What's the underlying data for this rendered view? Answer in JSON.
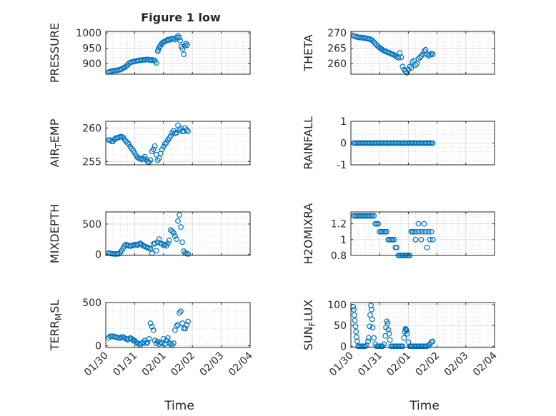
{
  "figure": {
    "title": "Figure 1 low",
    "xlabel": "Time"
  },
  "chart_data": [
    {
      "type": "scatter",
      "ylabel": "PRESSURE",
      "yticks": [
        900,
        950,
        1000
      ],
      "ylim": [
        865,
        1005
      ],
      "xticks": [
        "01/30",
        "01/31",
        "02/01",
        "02/02",
        "02/03",
        "02/04"
      ],
      "show_xtick_labels": false,
      "x": [
        0.1,
        0.15,
        0.2,
        0.25,
        0.3,
        0.35,
        0.4,
        0.45,
        0.5,
        0.55,
        0.6,
        0.65,
        0.7,
        0.75,
        0.8,
        0.85,
        0.9,
        0.95,
        1.0,
        1.05,
        1.1,
        1.15,
        1.2,
        1.25,
        1.3,
        1.35,
        1.4,
        1.45,
        1.5,
        1.55,
        1.6,
        1.65,
        1.7,
        1.75,
        1.8,
        1.82,
        1.85,
        1.88,
        1.92,
        1.95,
        2.0,
        2.05,
        2.1,
        2.15,
        2.2,
        2.25,
        2.3,
        2.35,
        2.4,
        2.45,
        2.5,
        2.55,
        2.58,
        2.62,
        2.66,
        2.7,
        2.74,
        2.78,
        2.82
      ],
      "y": [
        872,
        873,
        875,
        876,
        877,
        877,
        878,
        879,
        880,
        882,
        885,
        887,
        890,
        895,
        900,
        903,
        905,
        906,
        907,
        908,
        909,
        910,
        911,
        911,
        912,
        912,
        913,
        913,
        912,
        911,
        912,
        911,
        909,
        902,
        940,
        945,
        952,
        957,
        962,
        967,
        970,
        972,
        975,
        978,
        977,
        980,
        982,
        980,
        978,
        985,
        990,
        985,
        975,
        955,
        948,
        930,
        958,
        965,
        960
      ]
    },
    {
      "type": "scatter",
      "ylabel": "THETA",
      "yticks": [
        260,
        265,
        270
      ],
      "ylim": [
        256.5,
        270.5
      ],
      "xticks": [
        "01/30",
        "01/31",
        "02/01",
        "02/02",
        "02/03",
        "02/04"
      ],
      "show_xtick_labels": false,
      "x": [
        0.1,
        0.15,
        0.2,
        0.25,
        0.3,
        0.35,
        0.4,
        0.45,
        0.5,
        0.55,
        0.6,
        0.65,
        0.7,
        0.75,
        0.8,
        0.85,
        0.9,
        0.95,
        1.0,
        1.05,
        1.1,
        1.15,
        1.2,
        1.25,
        1.3,
        1.35,
        1.4,
        1.45,
        1.5,
        1.55,
        1.6,
        1.65,
        1.7,
        1.75,
        1.8,
        1.85,
        1.9,
        1.95,
        2.0,
        2.05,
        2.1,
        2.15,
        2.2,
        2.25,
        2.3,
        2.35,
        2.4,
        2.45,
        2.5,
        2.55,
        2.6,
        2.65,
        2.7,
        2.75,
        2.8,
        2.85
      ],
      "y": [
        269,
        268.9,
        268.7,
        268.6,
        268.5,
        268.5,
        268.4,
        268.4,
        268.3,
        268.2,
        268.1,
        268,
        267.8,
        267.5,
        267,
        266.5,
        266,
        265.6,
        265.2,
        264.9,
        264.5,
        264.2,
        264,
        263.8,
        263.6,
        263.4,
        263.2,
        263,
        262.8,
        262.5,
        262.2,
        261.9,
        263.5,
        262,
        259,
        258,
        257.5,
        257,
        258,
        259,
        258.5,
        260.5,
        261,
        259.5,
        260,
        261.5,
        262,
        262.5,
        263,
        264,
        264.5,
        263,
        262.5,
        262.8,
        263.2,
        263
      ]
    },
    {
      "type": "scatter",
      "ylabel": "AIR_TEMP",
      "yticks": [
        255,
        260
      ],
      "ylim": [
        254.5,
        261
      ],
      "xticks": [
        "01/30",
        "01/31",
        "02/01",
        "02/02",
        "02/03",
        "02/04"
      ],
      "show_xtick_labels": false,
      "x": [
        0.1,
        0.15,
        0.2,
        0.25,
        0.3,
        0.35,
        0.4,
        0.45,
        0.5,
        0.55,
        0.6,
        0.65,
        0.7,
        0.75,
        0.8,
        0.85,
        0.9,
        0.95,
        1.0,
        1.05,
        1.1,
        1.15,
        1.2,
        1.25,
        1.3,
        1.35,
        1.4,
        1.45,
        1.5,
        1.55,
        1.6,
        1.65,
        1.7,
        1.75,
        1.8,
        1.85,
        1.9,
        1.95,
        2.0,
        2.05,
        2.1,
        2.15,
        2.2,
        2.25,
        2.3,
        2.35,
        2.4,
        2.45,
        2.5,
        2.55,
        2.6,
        2.65,
        2.7,
        2.75,
        2.8,
        2.85
      ],
      "y": [
        258.2,
        258.2,
        258,
        258,
        258.3,
        258.5,
        258.5,
        258.6,
        258.7,
        258.7,
        258.6,
        258.3,
        258,
        257.8,
        257.6,
        257.2,
        256.9,
        256.6,
        256.3,
        255.9,
        255.6,
        255.5,
        255.4,
        255.3,
        255.4,
        255.7,
        255.3,
        255,
        254.9,
        255.2,
        256.5,
        256.8,
        257.3,
        256,
        255.2,
        255.5,
        256.2,
        256.8,
        257.2,
        257.6,
        257.8,
        258.2,
        258.5,
        258.8,
        259.3,
        259.6,
        259.2,
        259.3,
        260.4,
        259.7,
        259.9,
        259.5,
        259.5,
        260,
        259.7,
        259.5
      ]
    },
    {
      "type": "scatter",
      "ylabel": "RAINFALL",
      "yticks": [
        -1,
        0,
        1
      ],
      "ylim": [
        -1,
        1
      ],
      "xticks": [
        "01/30",
        "01/31",
        "02/01",
        "02/02",
        "02/03",
        "02/04"
      ],
      "show_xtick_labels": false,
      "x": [
        0.1,
        0.15,
        0.2,
        0.25,
        0.3,
        0.35,
        0.4,
        0.45,
        0.5,
        0.55,
        0.6,
        0.65,
        0.7,
        0.75,
        0.8,
        0.85,
        0.9,
        0.95,
        1.0,
        1.05,
        1.1,
        1.15,
        1.2,
        1.25,
        1.3,
        1.35,
        1.4,
        1.45,
        1.5,
        1.55,
        1.6,
        1.65,
        1.7,
        1.75,
        1.8,
        1.85,
        1.9,
        1.95,
        2.0,
        2.05,
        2.1,
        2.15,
        2.2,
        2.25,
        2.3,
        2.35,
        2.4,
        2.45,
        2.5,
        2.55,
        2.6,
        2.65,
        2.7,
        2.75,
        2.8,
        2.85
      ],
      "y": [
        0,
        0,
        0,
        0,
        0,
        0,
        0,
        0,
        0,
        0,
        0,
        0,
        0,
        0,
        0,
        0,
        0,
        0,
        0,
        0,
        0,
        0,
        0,
        0,
        0,
        0,
        0,
        0,
        0,
        0,
        0,
        0,
        0,
        0,
        0,
        0,
        0,
        0,
        0,
        0,
        0,
        0,
        0,
        0,
        0,
        0,
        0,
        0,
        0,
        0,
        0,
        0,
        0,
        0,
        0,
        0
      ]
    },
    {
      "type": "scatter",
      "ylabel": "MIXDEPTH",
      "yticks": [
        0,
        500
      ],
      "ylim": [
        -20,
        700
      ],
      "xticks": [
        "01/30",
        "01/31",
        "02/01",
        "02/02",
        "02/03",
        "02/04"
      ],
      "show_xtick_labels": false,
      "x": [
        0.1,
        0.15,
        0.2,
        0.25,
        0.3,
        0.35,
        0.4,
        0.45,
        0.5,
        0.55,
        0.6,
        0.65,
        0.7,
        0.75,
        0.8,
        0.85,
        0.9,
        0.95,
        1.0,
        1.05,
        1.1,
        1.15,
        1.2,
        1.25,
        1.3,
        1.35,
        1.4,
        1.45,
        1.5,
        1.55,
        1.6,
        1.65,
        1.7,
        1.75,
        1.8,
        1.85,
        1.9,
        1.95,
        2.0,
        2.05,
        2.1,
        2.15,
        2.2,
        2.25,
        2.3,
        2.35,
        2.4,
        2.45,
        2.5,
        2.55,
        2.6,
        2.65,
        2.7,
        2.75,
        2.8,
        2.85
      ],
      "y": [
        20,
        15,
        10,
        8,
        5,
        5,
        5,
        10,
        30,
        60,
        100,
        140,
        160,
        150,
        140,
        135,
        140,
        150,
        160,
        155,
        150,
        170,
        180,
        160,
        140,
        130,
        120,
        110,
        100,
        90,
        15,
        170,
        180,
        60,
        200,
        250,
        180,
        170,
        150,
        160,
        140,
        180,
        230,
        400,
        380,
        350,
        300,
        250,
        550,
        650,
        450,
        200,
        50,
        20,
        10,
        5
      ]
    },
    {
      "type": "scatter",
      "ylabel": "H2OMIXRA",
      "yticks": [
        0.8,
        1,
        1.2
      ],
      "ylim": [
        0.8,
        1.35
      ],
      "xticks": [
        "01/30",
        "01/31",
        "02/01",
        "02/02",
        "02/03",
        "02/04"
      ],
      "show_xtick_labels": false,
      "x": [
        0.1,
        0.15,
        0.2,
        0.25,
        0.3,
        0.35,
        0.4,
        0.45,
        0.5,
        0.55,
        0.6,
        0.65,
        0.7,
        0.75,
        0.8,
        0.85,
        0.9,
        0.95,
        1.0,
        1.05,
        1.1,
        1.15,
        1.2,
        1.25,
        1.3,
        1.35,
        1.4,
        1.45,
        1.5,
        1.55,
        1.6,
        1.65,
        1.7,
        1.75,
        1.8,
        1.85,
        1.9,
        1.95,
        2.0,
        2.05,
        2.1,
        2.15,
        2.2,
        2.25,
        2.3,
        2.35,
        2.4,
        2.45,
        2.5,
        2.55,
        2.6,
        2.65,
        2.7,
        2.75,
        2.8,
        2.85
      ],
      "y": [
        1.3,
        1.3,
        1.3,
        1.3,
        1.3,
        1.3,
        1.3,
        1.3,
        1.3,
        1.3,
        1.3,
        1.3,
        1.3,
        1.3,
        1.3,
        1.2,
        1.2,
        1.2,
        1.1,
        1.1,
        1.1,
        1.1,
        1.1,
        1.1,
        1.0,
        1.0,
        1.0,
        1.0,
        1.0,
        0.9,
        0.9,
        0.8,
        0.8,
        0.8,
        0.8,
        0.8,
        0.8,
        0.8,
        0.8,
        0.8,
        1.1,
        1.1,
        1.1,
        1.0,
        1.1,
        1.2,
        1.1,
        1.0,
        1.1,
        1.2,
        1.1,
        0.9,
        1.1,
        1.0,
        1.1,
        1.0
      ]
    },
    {
      "type": "scatter",
      "ylabel": "TERR_MSL",
      "yticks": [
        0,
        500
      ],
      "ylim": [
        -20,
        500
      ],
      "xticks": [
        "01/30",
        "01/31",
        "02/01",
        "02/02",
        "02/03",
        "02/04"
      ],
      "show_xtick_labels": true,
      "x": [
        0.1,
        0.15,
        0.2,
        0.25,
        0.3,
        0.35,
        0.4,
        0.45,
        0.5,
        0.55,
        0.6,
        0.65,
        0.7,
        0.75,
        0.8,
        0.85,
        0.9,
        0.95,
        1.0,
        1.05,
        1.1,
        1.15,
        1.2,
        1.25,
        1.3,
        1.35,
        1.4,
        1.45,
        1.5,
        1.55,
        1.6,
        1.65,
        1.7,
        1.75,
        1.8,
        1.85,
        1.9,
        1.95,
        2.0,
        2.05,
        2.1,
        2.15,
        2.2,
        2.25,
        2.3,
        2.35,
        2.4,
        2.45,
        2.5,
        2.55,
        2.6,
        2.65,
        2.7,
        2.75,
        2.8,
        2.85
      ],
      "y": [
        90,
        110,
        110,
        110,
        105,
        100,
        95,
        90,
        90,
        100,
        100,
        90,
        80,
        70,
        80,
        90,
        80,
        60,
        60,
        40,
        30,
        20,
        10,
        30,
        40,
        60,
        30,
        40,
        80,
        260,
        220,
        180,
        60,
        30,
        50,
        20,
        40,
        30,
        80,
        20,
        60,
        90,
        30,
        20,
        10,
        30,
        180,
        230,
        240,
        380,
        400,
        260,
        200,
        200,
        240,
        280
      ]
    },
    {
      "type": "scatter",
      "ylabel": "SUN_FLUX",
      "yticks": [
        0,
        50,
        100
      ],
      "ylim": [
        -3,
        105
      ],
      "xticks": [
        "01/30",
        "01/31",
        "02/01",
        "02/02",
        "02/03",
        "02/04"
      ],
      "show_xtick_labels": true,
      "x": [
        0.08,
        0.1,
        0.12,
        0.14,
        0.16,
        0.18,
        0.2,
        0.22,
        0.25,
        0.3,
        0.35,
        0.4,
        0.45,
        0.5,
        0.55,
        0.6,
        0.62,
        0.65,
        0.67,
        0.7,
        0.72,
        0.74,
        0.76,
        0.8,
        0.85,
        0.9,
        0.95,
        1.0,
        1.05,
        1.1,
        1.15,
        1.2,
        1.22,
        1.25,
        1.28,
        1.3,
        1.33,
        1.36,
        1.4,
        1.45,
        1.5,
        1.55,
        1.6,
        1.65,
        1.7,
        1.75,
        1.8,
        1.85,
        1.88,
        1.9,
        1.92,
        1.94,
        1.96,
        2.0,
        2.05,
        2.1,
        2.15,
        2.2,
        2.25,
        2.3,
        2.35,
        2.4,
        2.45,
        2.5,
        2.55,
        2.6,
        2.65,
        2.7,
        2.75,
        2.8,
        2.85
      ],
      "y": [
        95,
        88,
        75,
        62,
        48,
        35,
        22,
        12,
        0,
        0,
        0,
        0,
        0,
        0,
        2,
        12,
        20,
        48,
        75,
        98,
        88,
        65,
        45,
        20,
        5,
        0,
        0,
        0,
        0,
        0,
        5,
        25,
        45,
        60,
        55,
        40,
        30,
        15,
        0,
        0,
        0,
        0,
        0,
        0,
        0,
        0,
        0,
        20,
        35,
        42,
        40,
        38,
        30,
        10,
        0,
        0,
        0,
        0,
        0,
        0,
        0,
        0,
        0,
        0,
        0,
        0,
        0,
        2,
        5,
        10,
        12
      ]
    }
  ]
}
